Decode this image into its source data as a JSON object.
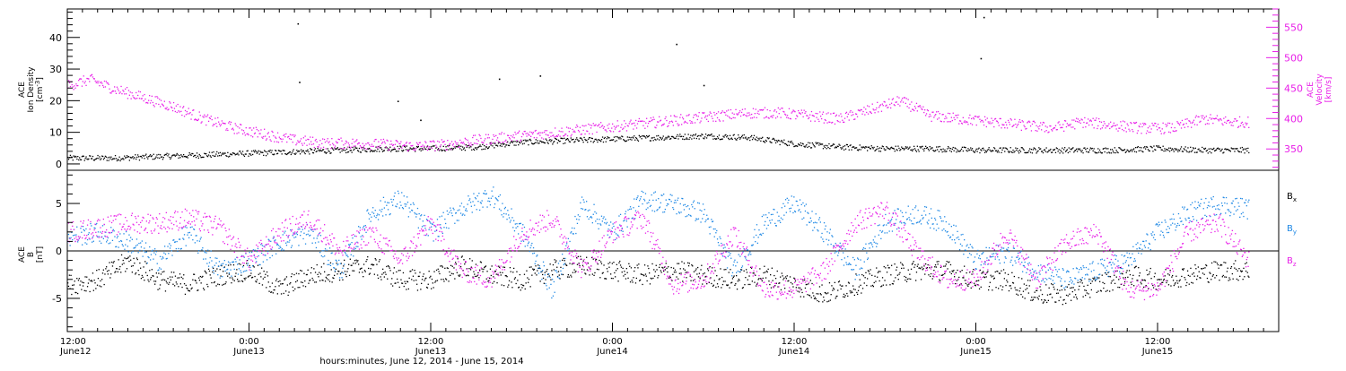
{
  "chart_data": [
    {
      "type": "scatter",
      "panel": "top",
      "ylabel_left": [
        "ACE",
        "Ion Density",
        "[cm^-3]"
      ],
      "ylabel_right": [
        "ACE",
        "Velocity",
        "[km/s]"
      ],
      "y_left_range": [
        -2,
        49
      ],
      "y_left_ticks": [
        0,
        10,
        20,
        30,
        40
      ],
      "y_right_range": [
        315,
        580
      ],
      "y_right_ticks": [
        350,
        400,
        450,
        500,
        550
      ],
      "x_range_hours": [
        0,
        80
      ],
      "series": [
        {
          "axis": "left",
          "color": "#000000",
          "x_hours": [
            0,
            3,
            6,
            9,
            12,
            15,
            18,
            21,
            24,
            27,
            30,
            33,
            36,
            39,
            42,
            45,
            48,
            51,
            54,
            57,
            60,
            63,
            66,
            69,
            72,
            75,
            78
          ],
          "values": [
            2,
            2,
            2.5,
            3,
            3.5,
            4,
            4.5,
            5,
            5,
            5.5,
            7,
            7.5,
            8,
            8.5,
            9,
            8.5,
            6.5,
            5.5,
            5,
            5,
            4.5,
            4.5,
            4.5,
            4.5,
            5,
            4.5,
            4.5
          ]
        },
        {
          "axis": "right",
          "color": "#e81ee8",
          "x_hours": [
            0,
            1.5,
            3,
            5,
            7,
            9,
            11,
            13,
            15,
            17,
            19,
            21,
            23,
            25,
            27,
            29,
            31,
            33,
            35,
            37,
            39,
            41,
            43,
            45,
            47,
            49,
            51,
            53,
            55,
            57,
            59,
            61,
            63,
            65,
            67,
            69,
            71,
            73,
            75,
            77,
            78
          ],
          "values": [
            455,
            465,
            450,
            435,
            420,
            400,
            385,
            375,
            365,
            360,
            360,
            358,
            355,
            358,
            365,
            370,
            375,
            380,
            385,
            390,
            395,
            400,
            405,
            410,
            410,
            405,
            400,
            415,
            430,
            405,
            400,
            395,
            390,
            385,
            395,
            390,
            385,
            385,
            400,
            395,
            395
          ]
        }
      ],
      "outliers": [
        {
          "x_hours": 15.2,
          "value": 44.5
        },
        {
          "x_hours": 15.3,
          "value": 26
        },
        {
          "x_hours": 21.8,
          "value": 20
        },
        {
          "x_hours": 23.3,
          "value": 14
        },
        {
          "x_hours": 28.5,
          "value": 27
        },
        {
          "x_hours": 31.2,
          "value": 28
        },
        {
          "x_hours": 40.2,
          "value": 38
        },
        {
          "x_hours": 42,
          "value": 25
        },
        {
          "x_hours": 60.5,
          "value": 46.5
        },
        {
          "x_hours": 60.3,
          "value": 33.5
        }
      ]
    },
    {
      "type": "scatter",
      "panel": "bottom",
      "ylabel_left": [
        "ACE",
        "B",
        "[nT]"
      ],
      "y_range": [
        -8.5,
        8.5
      ],
      "y_ticks": [
        -5,
        0,
        5
      ],
      "x_range_hours": [
        0,
        80
      ],
      "x_tick_labels": [
        {
          "time": "12:00",
          "date": "June12"
        },
        {
          "time": "0:00",
          "date": "June13"
        },
        {
          "time": "12:00",
          "date": "June13"
        },
        {
          "time": "0:00",
          "date": "June14"
        },
        {
          "time": "12:00",
          "date": "June14"
        },
        {
          "time": "0:00",
          "date": "June15"
        },
        {
          "time": "12:00",
          "date": "June15"
        }
      ],
      "xlabel": "hours:minutes, June 12, 2014 - June 15, 2014",
      "legend": [
        {
          "name": "B",
          "sub": "x",
          "color": "#000000"
        },
        {
          "name": "B",
          "sub": "y",
          "color": "#1e88e5"
        },
        {
          "name": "B",
          "sub": "z",
          "color": "#e81ee8"
        }
      ],
      "series": [
        {
          "name": "Bx",
          "color": "#000000",
          "x_hours": [
            0,
            2,
            4,
            6,
            8,
            10,
            12,
            14,
            16,
            18,
            20,
            22,
            24,
            26,
            28,
            30,
            32,
            34,
            36,
            38,
            40,
            42,
            44,
            46,
            48,
            50,
            52,
            54,
            56,
            58,
            60,
            62,
            64,
            66,
            68,
            70,
            72,
            74,
            76,
            78
          ],
          "values": [
            -3.5,
            -3,
            -1,
            -3,
            -3.5,
            -2.5,
            -2,
            -4,
            -2.5,
            -2,
            -1.5,
            -3,
            -3,
            -1.5,
            -2.5,
            -3,
            -2,
            -1.5,
            -2,
            -2.5,
            -2,
            -2.5,
            -3,
            -2.5,
            -3.5,
            -4.5,
            -3.5,
            -2.5,
            -2,
            -2,
            -3,
            -3,
            -4.5,
            -4.5,
            -3.5,
            -2.5,
            -3,
            -2.5,
            -2,
            -2
          ]
        },
        {
          "name": "By",
          "color": "#1e88e5",
          "x_hours": [
            0,
            2,
            4,
            6,
            8,
            10,
            12,
            14,
            16,
            18,
            20,
            22,
            24,
            26,
            28,
            30,
            32,
            34,
            36,
            38,
            40,
            42,
            44,
            46,
            48,
            50,
            52,
            54,
            56,
            58,
            60,
            62,
            64,
            66,
            68,
            70,
            72,
            74,
            76,
            78
          ],
          "values": [
            1.5,
            2,
            1,
            -1,
            2,
            -2,
            -1,
            1,
            2,
            -2,
            4,
            5.5,
            2,
            4.5,
            6,
            2,
            -4,
            5,
            2,
            5.5,
            5,
            4,
            -2,
            3,
            5,
            2,
            -2,
            3,
            4,
            3,
            -1,
            0,
            -2,
            -3,
            -2,
            -1,
            2,
            4,
            5,
            4.5
          ]
        },
        {
          "name": "Bz",
          "color": "#e81ee8",
          "x_hours": [
            0,
            2,
            4,
            6,
            8,
            10,
            12,
            14,
            16,
            18,
            20,
            22,
            24,
            26,
            28,
            30,
            32,
            34,
            36,
            38,
            40,
            42,
            44,
            46,
            48,
            50,
            52,
            54,
            56,
            58,
            60,
            62,
            64,
            66,
            68,
            70,
            72,
            74,
            76,
            78
          ],
          "values": [
            2,
            2.5,
            3,
            3,
            3.5,
            2.5,
            -1,
            2,
            3.5,
            0,
            2,
            -1,
            3,
            -2,
            -3,
            2,
            3.5,
            -2,
            2,
            3.5,
            -3.5,
            -3,
            2,
            -4,
            -4,
            -2,
            3,
            4.5,
            0,
            -3,
            -3,
            2,
            -3,
            1,
            2,
            -4,
            -4,
            2,
            3,
            -1
          ]
        }
      ]
    }
  ]
}
